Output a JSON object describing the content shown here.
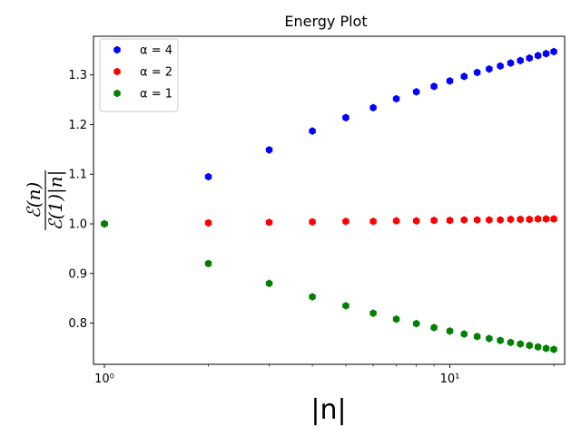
{
  "chart_data": {
    "type": "scatter",
    "title": "Energy Plot",
    "xlabel": "|n|",
    "ylabel_numerator": "ℰ(n)",
    "ylabel_denominator": "ℰ(1)|n|",
    "xscale": "log",
    "xlim": [
      0.93,
      21.5
    ],
    "ylim": [
      0.717,
      1.378
    ],
    "x_ticks": [
      {
        "value": 1,
        "label": "10⁰"
      },
      {
        "value": 10,
        "label": "10¹"
      }
    ],
    "y_ticks": [
      {
        "value": 0.8,
        "label": "0.8"
      },
      {
        "value": 0.9,
        "label": "0.9"
      },
      {
        "value": 1.0,
        "label": "1.0"
      },
      {
        "value": 1.1,
        "label": "1.1"
      },
      {
        "value": 1.2,
        "label": "1.2"
      },
      {
        "value": 1.3,
        "label": "1.3"
      }
    ],
    "legend_position": "upper-left",
    "series": [
      {
        "name": "α = 4",
        "color": "#0000ff",
        "x": [
          1,
          2,
          3,
          4,
          5,
          6,
          7,
          8,
          9,
          10,
          11,
          12,
          13,
          14,
          15,
          16,
          17,
          18,
          19,
          20
        ],
        "y": [
          1.0,
          1.095,
          1.149,
          1.187,
          1.214,
          1.234,
          1.252,
          1.266,
          1.277,
          1.288,
          1.297,
          1.305,
          1.312,
          1.318,
          1.324,
          1.329,
          1.334,
          1.339,
          1.343,
          1.347
        ]
      },
      {
        "name": "α = 2",
        "color": "#ff0000",
        "x": [
          1,
          2,
          3,
          4,
          5,
          6,
          7,
          8,
          9,
          10,
          11,
          12,
          13,
          14,
          15,
          16,
          17,
          18,
          19,
          20
        ],
        "y": [
          1.0,
          1.002,
          1.003,
          1.004,
          1.005,
          1.005,
          1.006,
          1.006,
          1.007,
          1.007,
          1.008,
          1.008,
          1.008,
          1.008,
          1.009,
          1.009,
          1.009,
          1.01,
          1.01,
          1.01
        ]
      },
      {
        "name": "α = 1",
        "color": "#008000",
        "x": [
          1,
          2,
          3,
          4,
          5,
          6,
          7,
          8,
          9,
          10,
          11,
          12,
          13,
          14,
          15,
          16,
          17,
          18,
          19,
          20
        ],
        "y": [
          1.0,
          0.92,
          0.88,
          0.853,
          0.835,
          0.82,
          0.808,
          0.799,
          0.791,
          0.784,
          0.778,
          0.773,
          0.769,
          0.765,
          0.761,
          0.758,
          0.755,
          0.752,
          0.749,
          0.747
        ]
      }
    ]
  }
}
